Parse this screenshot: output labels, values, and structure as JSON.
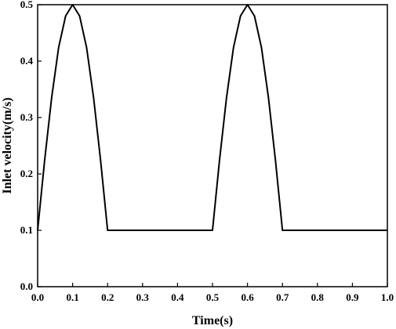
{
  "chart_data": {
    "type": "line",
    "title": "",
    "xlabel": "Time(s)",
    "ylabel": "Inlet velocity(m/s)",
    "xlim": [
      0.0,
      1.0
    ],
    "ylim": [
      0.0,
      0.5
    ],
    "x_ticks": [
      "0.0",
      "0.1",
      "0.2",
      "0.3",
      "0.4",
      "0.5",
      "0.6",
      "0.7",
      "0.8",
      "0.9",
      "1.0"
    ],
    "y_ticks": [
      "0.0",
      "0.1",
      "0.2",
      "0.3",
      "0.4",
      "0.5"
    ],
    "grid": false,
    "legend": "none",
    "series": [
      {
        "color": "#000000",
        "x": [
          0.0,
          0.02,
          0.04,
          0.06,
          0.08,
          0.1,
          0.12,
          0.14,
          0.16,
          0.18,
          0.2,
          0.3,
          0.4,
          0.5,
          0.52,
          0.54,
          0.56,
          0.58,
          0.6,
          0.62,
          0.64,
          0.66,
          0.68,
          0.7,
          0.8,
          0.9,
          1.0
        ],
        "y": [
          0.1,
          0.224,
          0.335,
          0.424,
          0.48,
          0.5,
          0.48,
          0.424,
          0.335,
          0.224,
          0.1,
          0.1,
          0.1,
          0.1,
          0.224,
          0.335,
          0.424,
          0.48,
          0.5,
          0.48,
          0.424,
          0.335,
          0.224,
          0.1,
          0.1,
          0.1,
          0.1
        ]
      }
    ]
  }
}
